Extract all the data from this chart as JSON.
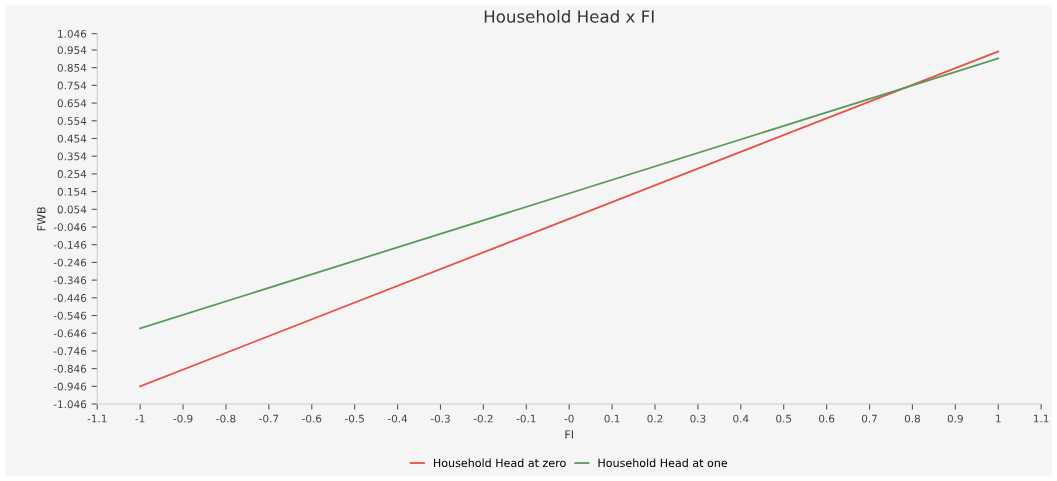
{
  "chart_data": {
    "type": "line",
    "title": "Household Head x FI",
    "xlabel": "FI",
    "ylabel": "FWB",
    "x": [
      -1,
      1
    ],
    "series": [
      {
        "name": "Household Head at zero",
        "color": "#e8504a",
        "values": [
          -0.946,
          0.946
        ]
      },
      {
        "name": "Household Head at one",
        "color": "#5a9a5a",
        "values": [
          -0.618,
          0.906
        ]
      }
    ],
    "xlim": [
      -1.1,
      1.1
    ],
    "xticks": [
      -1.1,
      -1,
      -0.9,
      -0.8,
      -0.7,
      -0.6,
      -0.5,
      -0.4,
      -0.3,
      -0.2,
      -0.1,
      {
        "value": 0,
        "label": "-0"
      },
      0.1,
      0.2,
      0.3,
      0.4,
      0.5,
      0.6,
      0.7,
      0.8,
      0.9,
      1,
      1.1
    ],
    "ylim": [
      -1.046,
      1.046
    ],
    "yticks": [
      -1.046,
      -0.946,
      -0.846,
      -0.746,
      -0.646,
      -0.546,
      -0.446,
      -0.346,
      -0.246,
      -0.146,
      -0.046,
      0.054,
      0.154,
      0.254,
      0.354,
      0.454,
      0.554,
      0.654,
      0.754,
      0.854,
      0.954,
      1.046
    ],
    "grid": false,
    "legend": "bottom",
    "marker": "none",
    "line_style": "solid"
  }
}
